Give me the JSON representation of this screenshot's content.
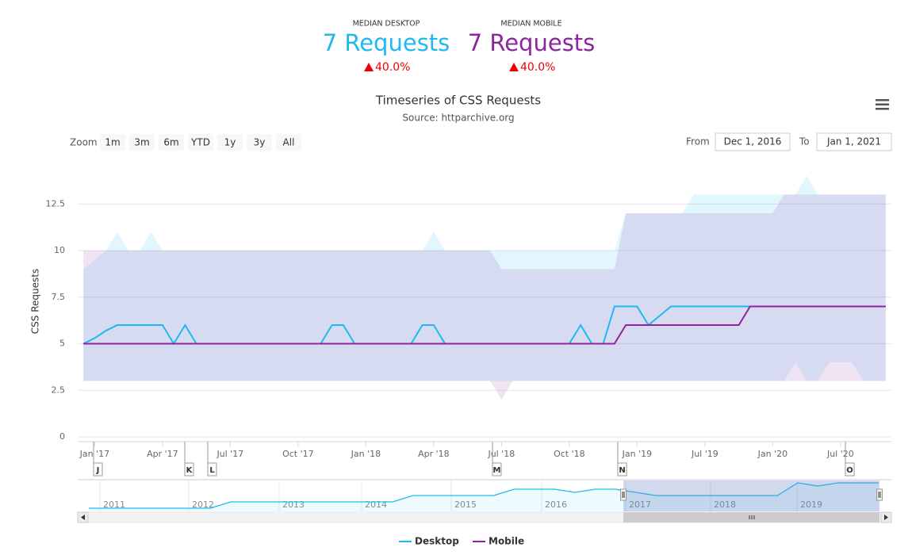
{
  "summary": [
    {
      "label": "MEDIAN DESKTOP",
      "value": "7 Requests",
      "change": "40.0%"
    },
    {
      "label": "MEDIAN MOBILE",
      "value": "7 Requests",
      "change": "40.0%"
    }
  ],
  "zoom": {
    "label": "Zoom",
    "buttons": [
      "1m",
      "3m",
      "6m",
      "YTD",
      "1y",
      "3y",
      "All"
    ]
  },
  "range": {
    "from_label": "From",
    "from": "Dec 1, 2016",
    "to_label": "To",
    "to": "Jan 1, 2021"
  },
  "chart_data": {
    "type": "line",
    "title": "Timeseries of CSS Requests",
    "subtitle": "Source: httparchive.org",
    "y_label": "CSS Requests",
    "categories": [
      null,
      "Jan '17",
      null,
      null,
      null,
      null,
      null,
      "Apr '17",
      null,
      null,
      null,
      null,
      null,
      "Jul '17",
      null,
      null,
      null,
      null,
      null,
      "Oct '17",
      null,
      null,
      null,
      null,
      null,
      "Jan '18",
      null,
      null,
      null,
      null,
      null,
      "Apr '18",
      null,
      null,
      null,
      null,
      null,
      "Jul '18",
      null,
      null,
      null,
      null,
      null,
      "Oct '18",
      null,
      null,
      null,
      null,
      null,
      "Jan '19",
      null,
      null,
      null,
      null,
      null,
      "Jul '19",
      null,
      null,
      null,
      null,
      null,
      "Jan '20",
      null,
      null,
      null,
      null,
      null,
      "Jul '20",
      null,
      null,
      null,
      null
    ],
    "series": [
      {
        "name": "Desktop",
        "color": "#1eb9f0",
        "values": [
          5,
          5.3,
          5.7,
          6,
          6,
          6,
          6,
          6,
          5,
          6,
          5,
          5,
          5,
          5,
          5,
          5,
          5,
          5,
          5,
          5,
          5,
          5,
          6,
          6,
          5,
          5,
          5,
          5,
          5,
          5,
          6,
          6,
          5,
          5,
          5,
          5,
          5,
          5,
          5,
          5,
          5,
          5,
          5,
          5,
          6,
          5,
          5,
          7,
          7,
          7,
          6,
          6.5,
          7,
          7,
          7,
          7,
          7,
          7,
          7,
          7,
          7,
          7,
          7,
          7,
          7,
          7,
          7,
          7,
          7,
          7,
          7,
          7
        ],
        "high": [
          9,
          9.5,
          10,
          11,
          10,
          10,
          11,
          10,
          10,
          10,
          10,
          10,
          10,
          10,
          10,
          10,
          10,
          10,
          10,
          10,
          10,
          10,
          10,
          10,
          10,
          10,
          10,
          10,
          10,
          10,
          10,
          11,
          10,
          10,
          10,
          10,
          10,
          10,
          10,
          10,
          10,
          10,
          10,
          10,
          10,
          10,
          10,
          10,
          12,
          12,
          12,
          12,
          12,
          12,
          13,
          13,
          13,
          13,
          13,
          13,
          13,
          13,
          13,
          13,
          14,
          13,
          13,
          13,
          13,
          13,
          13,
          13
        ],
        "low": [
          3,
          3,
          3,
          3,
          3,
          3,
          3,
          3,
          3,
          3,
          3,
          3,
          3,
          3,
          3,
          3,
          3,
          3,
          3,
          3,
          3,
          3,
          3,
          3,
          3,
          3,
          3,
          3,
          3,
          3,
          3,
          3,
          3,
          3,
          3,
          3,
          3,
          3,
          3,
          3,
          3,
          3,
          3,
          3,
          3,
          3,
          3,
          3,
          3,
          3,
          3,
          3,
          3,
          3,
          3,
          3,
          3,
          3,
          3,
          3,
          3,
          3,
          3,
          4,
          3,
          3,
          4,
          4,
          4,
          3,
          3,
          3
        ]
      },
      {
        "name": "Mobile",
        "color": "#8e24a0",
        "values": [
          5,
          5,
          5,
          5,
          5,
          5,
          5,
          5,
          5,
          5,
          5,
          5,
          5,
          5,
          5,
          5,
          5,
          5,
          5,
          5,
          5,
          5,
          5,
          5,
          5,
          5,
          5,
          5,
          5,
          5,
          5,
          5,
          5,
          5,
          5,
          5,
          5,
          5,
          5,
          5,
          5,
          5,
          5,
          5,
          5,
          5,
          5,
          5,
          6,
          6,
          6,
          6,
          6,
          6,
          6,
          6,
          6,
          6,
          6,
          7,
          7,
          7,
          7,
          7,
          7,
          7,
          7,
          7,
          7,
          7,
          7,
          7
        ],
        "high": [
          10,
          10,
          10,
          10,
          10,
          10,
          10,
          10,
          10,
          10,
          10,
          10,
          10,
          10,
          10,
          10,
          10,
          10,
          10,
          10,
          10,
          10,
          10,
          10,
          10,
          10,
          10,
          10,
          10,
          10,
          10,
          10,
          10,
          10,
          10,
          10,
          10,
          9,
          9,
          9,
          9,
          9,
          9,
          9,
          9,
          9,
          9,
          9,
          12,
          12,
          12,
          12,
          12,
          12,
          12,
          12,
          12,
          12,
          12,
          12,
          12,
          12,
          13,
          13,
          13,
          13,
          13,
          13,
          13,
          13,
          13,
          13
        ],
        "low": [
          3,
          3,
          3,
          3,
          3,
          3,
          3,
          3,
          3,
          3,
          3,
          3,
          3,
          3,
          3,
          3,
          3,
          3,
          3,
          3,
          3,
          3,
          3,
          3,
          3,
          3,
          3,
          3,
          3,
          3,
          3,
          3,
          3,
          3,
          3,
          3,
          3,
          2,
          3,
          3,
          3,
          3,
          3,
          3,
          3,
          3,
          3,
          3,
          3,
          3,
          3,
          3,
          3,
          3,
          3,
          3,
          3,
          3,
          3,
          3,
          3,
          3,
          3,
          3,
          3,
          3,
          3,
          3,
          3,
          3,
          3,
          3
        ]
      }
    ],
    "ylim": [
      0,
      14
    ],
    "yticks": [
      0,
      2.5,
      5,
      7.5,
      10,
      12.5
    ],
    "grid": true,
    "flags": [
      "J",
      "K",
      "L",
      "M",
      "N",
      "O"
    ],
    "navigator": {
      "years": [
        "2011",
        "2012",
        "2013",
        "2014",
        "2015",
        "2016",
        "2017",
        "2018",
        "2019"
      ],
      "values": [
        3,
        3,
        3,
        3,
        3,
        3,
        3,
        4,
        4,
        4,
        4,
        4,
        4,
        4,
        4,
        4,
        5,
        5,
        5,
        5,
        5,
        6,
        6,
        6,
        5.5,
        6,
        6,
        5.5,
        5,
        5,
        5,
        5,
        5,
        5,
        5,
        7,
        6.5,
        7,
        7,
        7
      ]
    }
  }
}
